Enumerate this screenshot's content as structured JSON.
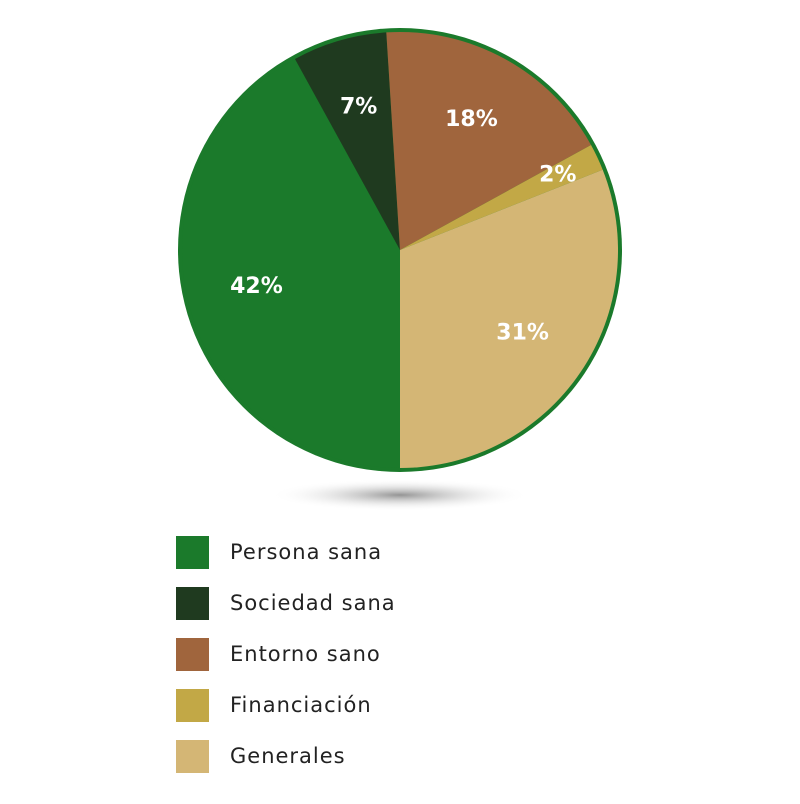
{
  "chart_data": {
    "type": "pie",
    "categories": [
      "Persona sana",
      "Sociedad sana",
      "Entorno sano",
      "Financiación",
      "Generales"
    ],
    "values": [
      42,
      7,
      18,
      2,
      31
    ],
    "value_labels": [
      "42%",
      "7%",
      "18%",
      "2%",
      "31%"
    ],
    "colors": [
      "#1b7a2b",
      "#1f3a1f",
      "#a0653d",
      "#c2a846",
      "#d4b675"
    ],
    "start_angle": 180,
    "legend": "bottom"
  }
}
